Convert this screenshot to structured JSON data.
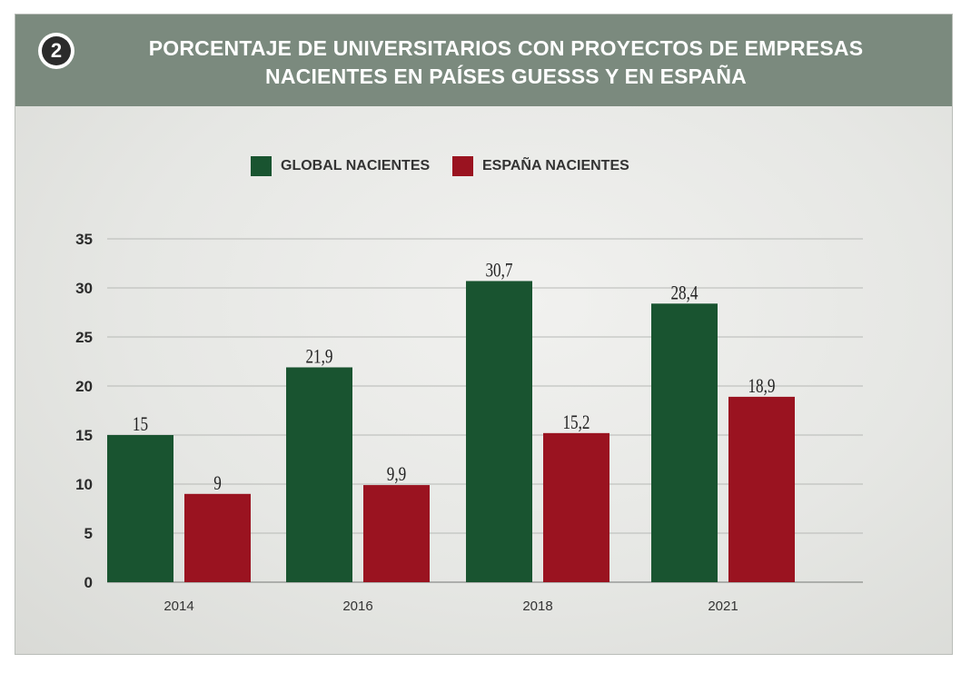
{
  "header": {
    "badge_number": "2",
    "title_line1": "PORCENTAJE DE UNIVERSITARIOS CON PROYECTOS DE EMPRESAS",
    "title_line2": "NACIENTES EN PAÍSES GUESSS Y EN ESPAÑA"
  },
  "legend": [
    {
      "label": "GLOBAL NACIENTES",
      "color": "#195430"
    },
    {
      "label": "ESPAÑA NACIENTES",
      "color": "#9a1320"
    }
  ],
  "chart_data": {
    "type": "bar",
    "categories": [
      "2014",
      "2016",
      "2018",
      "2021"
    ],
    "series": [
      {
        "name": "GLOBAL NACIENTES",
        "values": [
          15,
          21.9,
          30.7,
          28.4
        ],
        "labels": [
          "15",
          "21,9",
          "30,7",
          "28,4"
        ],
        "color": "#195430"
      },
      {
        "name": "ESPAÑA NACIENTES",
        "values": [
          9,
          9.9,
          15.2,
          18.9
        ],
        "labels": [
          "9",
          "9,9",
          "15,2",
          "18,9"
        ],
        "color": "#9a1320"
      }
    ],
    "yticks": [
      0,
      5,
      10,
      15,
      20,
      25,
      30,
      35
    ],
    "ylim": [
      0,
      35
    ],
    "grid": true,
    "legend_position": "top"
  }
}
